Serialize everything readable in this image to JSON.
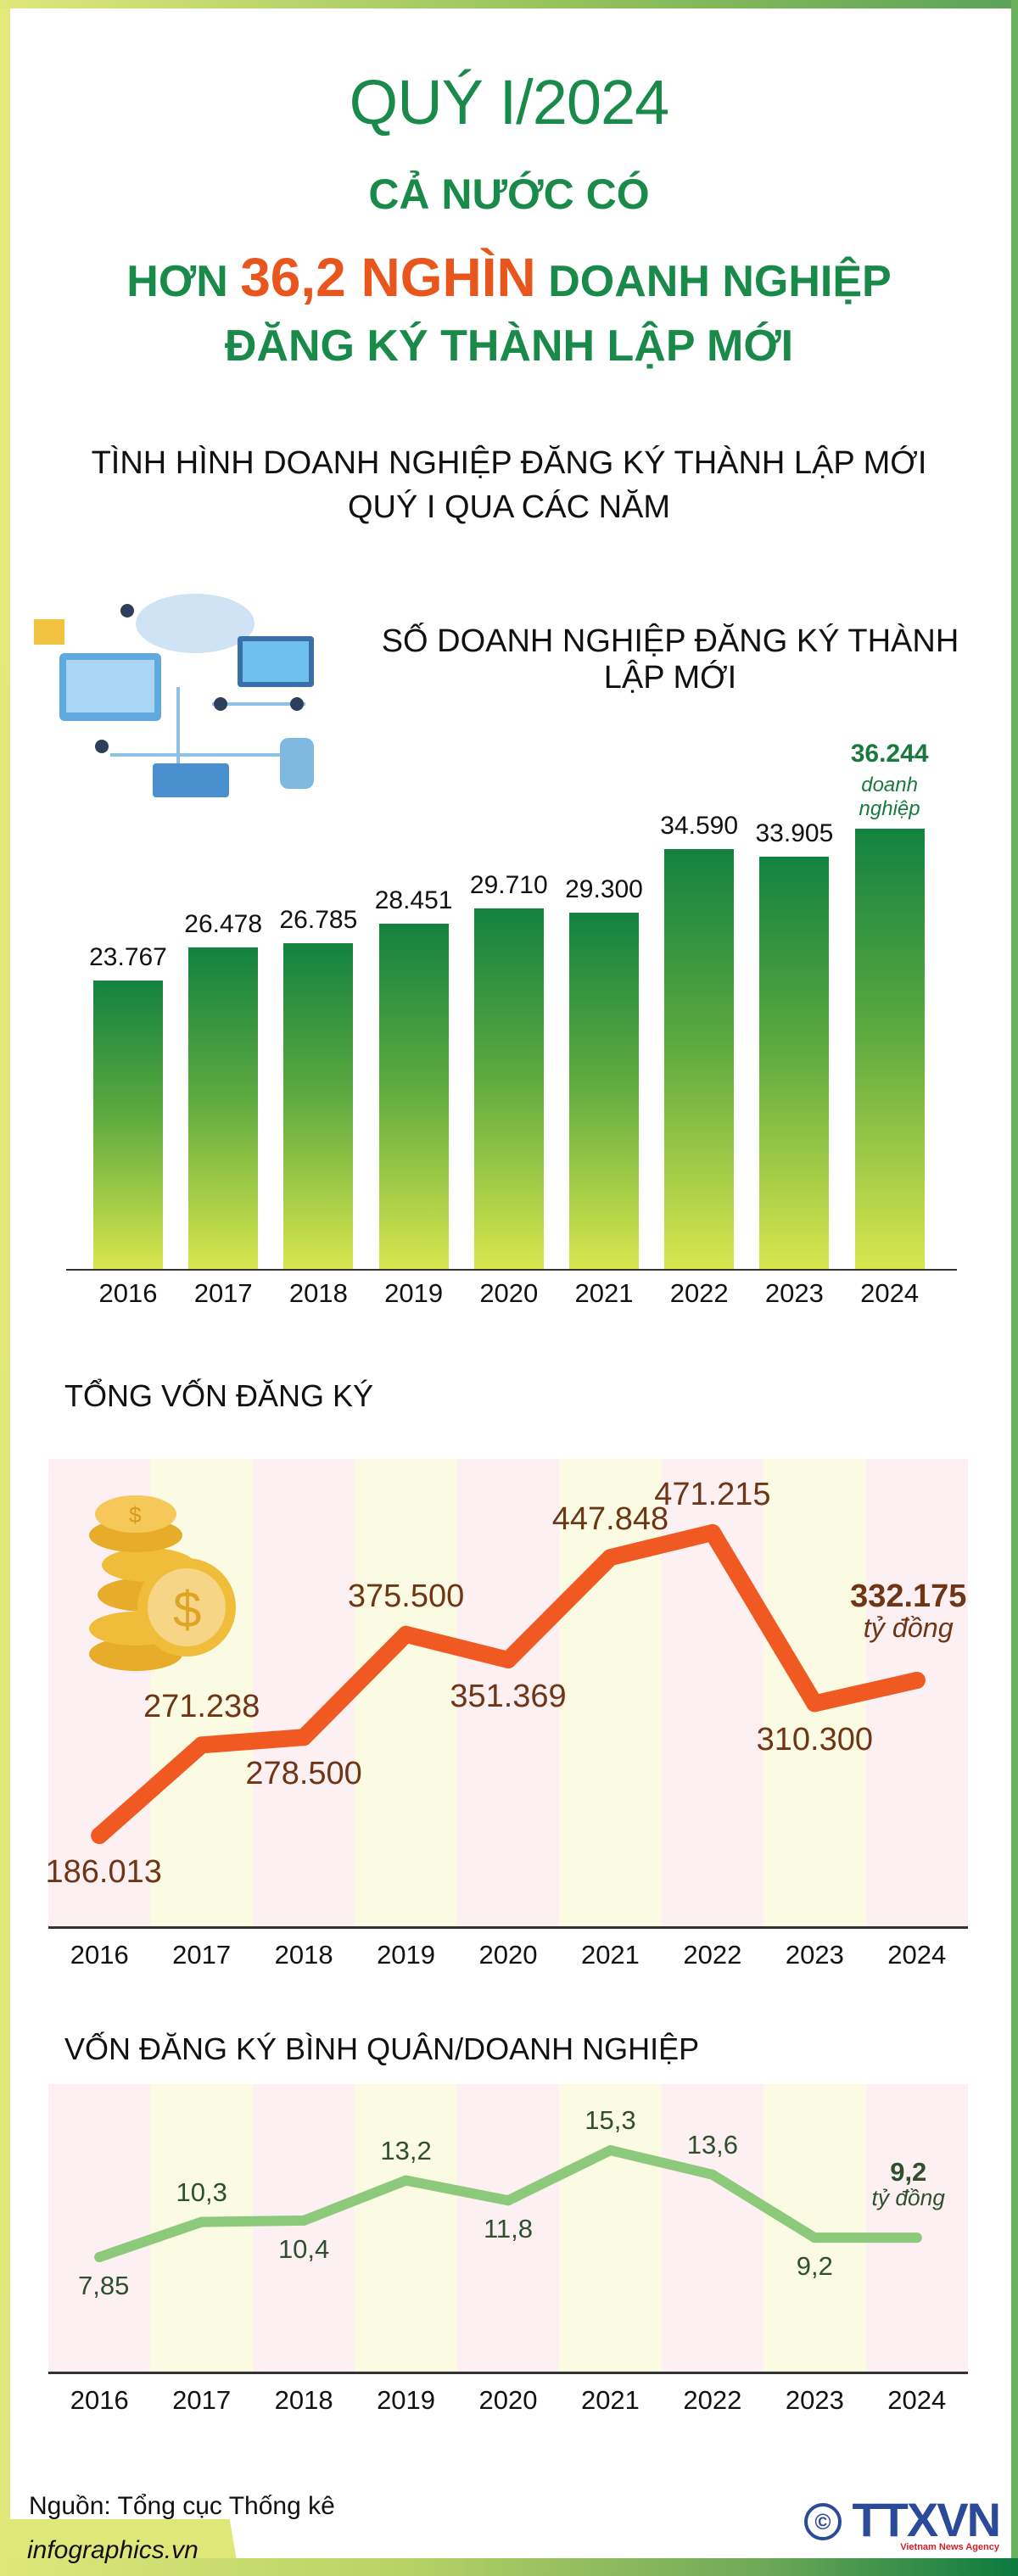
{
  "header": {
    "line1": "QUÝ I/2024",
    "line2": "CẢ NƯỚC CÓ",
    "line3_pre": "HƠN",
    "line3_highlight": "36,2 NGHÌN",
    "line3_post": "DOANH NGHIỆP",
    "line4": "ĐĂNG KÝ THÀNH LẬP MỚI",
    "subtitle1": "TÌNH HÌNH DOANH NGHIỆP ĐĂNG KÝ THÀNH LẬP MỚI",
    "subtitle2": "QUÝ I QUA CÁC NĂM"
  },
  "colors": {
    "green": "#1a8a4a",
    "orange": "#e8561e",
    "line_orange": "#f05a22",
    "line_green": "#8cc97a",
    "label_brown": "#6e3616"
  },
  "chart_data": [
    {
      "type": "bar",
      "title": "SỐ DOANH NGHIỆP ĐĂNG KÝ THÀNH LẬP MỚI",
      "categories": [
        "2016",
        "2017",
        "2018",
        "2019",
        "2020",
        "2021",
        "2022",
        "2023",
        "2024"
      ],
      "values": [
        23767,
        26478,
        26785,
        28451,
        29710,
        29300,
        34590,
        33905,
        36244
      ],
      "labels": [
        "23.767",
        "26.478",
        "26.785",
        "28.451",
        "29.710",
        "29.300",
        "34.590",
        "33.905",
        "36.244"
      ],
      "last_unit": "doanh nghiệp",
      "ylim": [
        0,
        40000
      ],
      "illustration": "cloud-computing-people-illustration"
    },
    {
      "type": "line",
      "title": "TỔNG VỐN ĐĂNG KÝ",
      "categories": [
        "2016",
        "2017",
        "2018",
        "2019",
        "2020",
        "2021",
        "2022",
        "2023",
        "2024"
      ],
      "values": [
        186013,
        271238,
        278500,
        375500,
        351369,
        447848,
        471215,
        310300,
        332175
      ],
      "labels": [
        "186.013",
        "271.238",
        "278.500",
        "375.500",
        "351.369",
        "447.848",
        "471.215",
        "310.300",
        "332.175"
      ],
      "label_positions": [
        "below",
        "above",
        "below",
        "above",
        "below",
        "above",
        "above",
        "below",
        "above"
      ],
      "last_unit": "tỷ đồng",
      "icon": "coins-icon"
    },
    {
      "type": "line",
      "title": "VỐN ĐĂNG KÝ BÌNH QUÂN/DOANH NGHIỆP",
      "categories": [
        "2016",
        "2017",
        "2018",
        "2019",
        "2020",
        "2021",
        "2022",
        "2023",
        "2024"
      ],
      "values": [
        7.85,
        10.3,
        10.4,
        13.2,
        11.8,
        15.3,
        13.6,
        9.2,
        9.2
      ],
      "labels": [
        "7,85",
        "10,3",
        "10,4",
        "13,2",
        "11,8",
        "15,3",
        "13,6",
        "9,2",
        "9,2"
      ],
      "label_positions": [
        "below",
        "above",
        "below",
        "above",
        "below",
        "above",
        "above",
        "below",
        "above"
      ],
      "last_unit": "tỷ đồng"
    }
  ],
  "footer": {
    "source": "Nguồn: Tổng cục Thống kê",
    "site": "infographics.vn",
    "logo_text": "TTXVN",
    "logo_sub": "Vietnam News Agency"
  }
}
